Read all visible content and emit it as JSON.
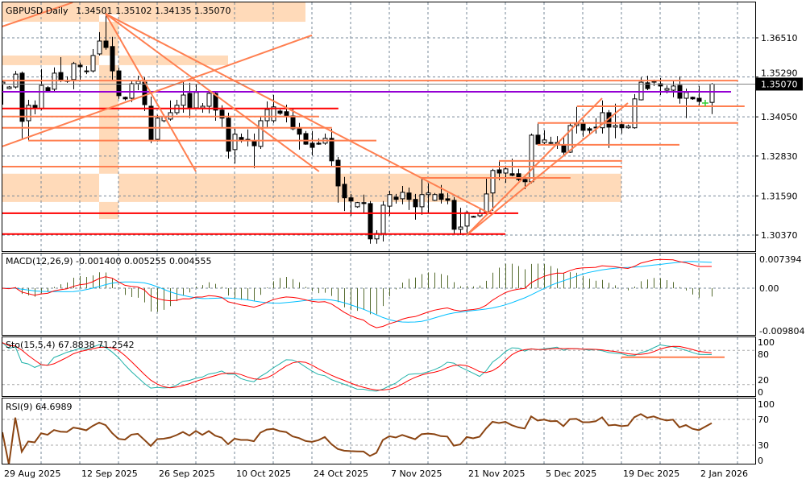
{
  "header": {
    "symbol": "GBPUSD",
    "timeframe": "Daily",
    "open": "1.34501",
    "high": "1.35102",
    "low": "1.34135",
    "close": "1.35070"
  },
  "price_axis": {
    "labels": [
      "1.36510",
      "1.35290",
      "1.34050",
      "1.32830",
      "1.31590",
      "1.30370"
    ],
    "current": "1.35070"
  },
  "colors": {
    "bull": "#FFFFFF",
    "bear": "#000000",
    "grid": "#778899",
    "orange": "#FF7F50",
    "red": "#FF0000",
    "purple": "#9400D3",
    "zone": "#FFDAB9",
    "bid": "#808080",
    "macd_main": "#FF0000",
    "macd_signal": "#00BFFF",
    "macd_hist": "#556B2F",
    "sto_main": "#20B2AA",
    "sto_signal": "#FF0000",
    "rsi": "#8B4513",
    "marker": "#32CD32"
  },
  "chart_data": {
    "type": "candlestick",
    "title": "GBPUSD Daily",
    "ylim": [
      1.3017,
      1.3764
    ],
    "x_labels": [
      {
        "bar": 0,
        "label": "29 Aug 2025"
      },
      {
        "bar": 12,
        "label": "12 Sep 2025"
      },
      {
        "bar": 24,
        "label": "26 Sep 2025"
      },
      {
        "bar": 36,
        "label": "10 Oct 2025"
      },
      {
        "bar": 48,
        "label": "24 Oct 2025"
      },
      {
        "bar": 60,
        "label": "7 Nov 2025"
      },
      {
        "bar": 72,
        "label": "21 Nov 2025"
      },
      {
        "bar": 84,
        "label": "5 Dec 2025"
      },
      {
        "bar": 96,
        "label": "19 Dec 2025"
      },
      {
        "bar": 108,
        "label": "2 Jan 2026"
      }
    ],
    "candles_ohlc": [
      [
        1.3508,
        1.3518,
        1.3443,
        1.3513
      ],
      [
        1.3493,
        1.3501,
        1.3491,
        1.3498
      ],
      [
        1.3498,
        1.3548,
        1.3493,
        1.3538
      ],
      [
        1.3541,
        1.3546,
        1.3338,
        1.3391
      ],
      [
        1.3393,
        1.3458,
        1.3331,
        1.3441
      ],
      [
        1.3441,
        1.3456,
        1.3413,
        1.3431
      ],
      [
        1.3431,
        1.3554,
        1.3426,
        1.3503
      ],
      [
        1.3496,
        1.3501,
        1.3483,
        1.3486
      ],
      [
        1.3491,
        1.3559,
        1.3481,
        1.3541
      ],
      [
        1.3543,
        1.3591,
        1.3513,
        1.3521
      ],
      [
        1.3518,
        1.3531,
        1.3511,
        1.3518
      ],
      [
        1.3521,
        1.3576,
        1.3491,
        1.3571
      ],
      [
        1.3566,
        1.3574,
        1.3521,
        1.3561
      ],
      [
        1.3548,
        1.3563,
        1.3538,
        1.3546
      ],
      [
        1.3548,
        1.3616,
        1.3543,
        1.3596
      ],
      [
        1.3601,
        1.3669,
        1.3596,
        1.3641
      ],
      [
        1.3641,
        1.3729,
        1.3614,
        1.3621
      ],
      [
        1.3624,
        1.3654,
        1.3521,
        1.3548
      ],
      [
        1.3548,
        1.3558,
        1.3461,
        1.3471
      ],
      [
        1.3466,
        1.3468,
        1.3456,
        1.3461
      ],
      [
        1.3463,
        1.3516,
        1.3451,
        1.3508
      ],
      [
        1.3508,
        1.3533,
        1.3488,
        1.3516
      ],
      [
        1.3513,
        1.3528,
        1.3423,
        1.3443
      ],
      [
        1.3438,
        1.3468,
        1.3323,
        1.3333
      ],
      [
        1.3335,
        1.3411,
        1.3328,
        1.3401
      ],
      [
        1.3393,
        1.3413,
        1.3388,
        1.3406
      ],
      [
        1.3398,
        1.3456,
        1.3393,
        1.3418
      ],
      [
        1.3418,
        1.3458,
        1.3411,
        1.3441
      ],
      [
        1.3441,
        1.3518,
        1.3418,
        1.3473
      ],
      [
        1.3478,
        1.3511,
        1.3401,
        1.3433
      ],
      [
        1.3433,
        1.3508,
        1.3431,
        1.3481
      ],
      [
        1.3433,
        1.3448,
        1.3418,
        1.3438
      ],
      [
        1.3438,
        1.3488,
        1.3416,
        1.3478
      ],
      [
        1.3478,
        1.3481,
        1.3393,
        1.3426
      ],
      [
        1.3426,
        1.3441,
        1.3373,
        1.3401
      ],
      [
        1.3401,
        1.3418,
        1.3275,
        1.3298
      ],
      [
        1.3303,
        1.3368,
        1.326,
        1.3351
      ],
      [
        1.3341,
        1.3353,
        1.3325,
        1.3333
      ],
      [
        1.3335,
        1.3366,
        1.3313,
        1.3333
      ],
      [
        1.3328,
        1.3353,
        1.3245,
        1.3315
      ],
      [
        1.3313,
        1.3406,
        1.3305,
        1.3393
      ],
      [
        1.3393,
        1.3453,
        1.3373,
        1.3428
      ],
      [
        1.3393,
        1.3473,
        1.3386,
        1.3436
      ],
      [
        1.3423,
        1.3428,
        1.3411,
        1.3416
      ],
      [
        1.3421,
        1.3443,
        1.3388,
        1.3408
      ],
      [
        1.3408,
        1.3431,
        1.3363,
        1.3368
      ],
      [
        1.3368,
        1.3386,
        1.3303,
        1.3351
      ],
      [
        1.3353,
        1.3361,
        1.3318,
        1.332
      ],
      [
        1.3323,
        1.3361,
        1.3285,
        1.331
      ],
      [
        1.3323,
        1.3338,
        1.3318,
        1.332
      ],
      [
        1.3323,
        1.3353,
        1.3318,
        1.3338
      ],
      [
        1.3338,
        1.3368,
        1.3248,
        1.3268
      ],
      [
        1.327,
        1.328,
        1.3138,
        1.319
      ],
      [
        1.3195,
        1.3218,
        1.3112,
        1.3153
      ],
      [
        1.3153,
        1.3165,
        1.3097,
        1.3143
      ],
      [
        1.3125,
        1.314,
        1.3122,
        1.3138
      ],
      [
        1.3138,
        1.3163,
        1.3105,
        1.3135
      ],
      [
        1.3135,
        1.3143,
        1.301,
        1.3025
      ],
      [
        1.3025,
        1.3052,
        1.301,
        1.3042
      ],
      [
        1.3042,
        1.3143,
        1.3017,
        1.313
      ],
      [
        1.3127,
        1.3175,
        1.3097,
        1.3163
      ],
      [
        1.3155,
        1.3165,
        1.3135,
        1.3148
      ],
      [
        1.315,
        1.319,
        1.3133,
        1.317
      ],
      [
        1.3168,
        1.3185,
        1.3115,
        1.3148
      ],
      [
        1.3148,
        1.3165,
        1.3085,
        1.3125
      ],
      [
        1.3125,
        1.3215,
        1.31,
        1.3163
      ],
      [
        1.3163,
        1.3198,
        1.3105,
        1.3168
      ],
      [
        1.3145,
        1.3168,
        1.3143,
        1.3163
      ],
      [
        1.3165,
        1.3193,
        1.3135,
        1.3148
      ],
      [
        1.315,
        1.3168,
        1.3133,
        1.3145
      ],
      [
        1.3145,
        1.3155,
        1.304,
        1.3055
      ],
      [
        1.3055,
        1.3122,
        1.3037,
        1.3062
      ],
      [
        1.3065,
        1.3112,
        1.304,
        1.3107
      ],
      [
        1.3095,
        1.3097,
        1.3092,
        1.3095
      ],
      [
        1.3097,
        1.3117,
        1.3092,
        1.3105
      ],
      [
        1.3107,
        1.3213,
        1.3097,
        1.3165
      ],
      [
        1.3168,
        1.3243,
        1.3112,
        1.3238
      ],
      [
        1.324,
        1.3268,
        1.3208,
        1.323
      ],
      [
        1.323,
        1.3253,
        1.32,
        1.3243
      ],
      [
        1.3228,
        1.3275,
        1.322,
        1.3223
      ],
      [
        1.3228,
        1.3243,
        1.3205,
        1.321
      ],
      [
        1.321,
        1.3223,
        1.318,
        1.3203
      ],
      [
        1.3203,
        1.3353,
        1.3198,
        1.3348
      ],
      [
        1.3348,
        1.3386,
        1.3318,
        1.332
      ],
      [
        1.3325,
        1.3363,
        1.332,
        1.3333
      ],
      [
        1.3325,
        1.3343,
        1.3318,
        1.3323
      ],
      [
        1.3325,
        1.3345,
        1.3305,
        1.3325
      ],
      [
        1.3315,
        1.3343,
        1.3285,
        1.3295
      ],
      [
        1.3295,
        1.3386,
        1.3293,
        1.3378
      ],
      [
        1.3378,
        1.3436,
        1.3353,
        1.3383
      ],
      [
        1.3383,
        1.3396,
        1.3343,
        1.3363
      ],
      [
        1.3368,
        1.3373,
        1.335,
        1.3363
      ],
      [
        1.3373,
        1.3401,
        1.3353,
        1.3373
      ],
      [
        1.3371,
        1.3456,
        1.3353,
        1.3418
      ],
      [
        1.3418,
        1.3426,
        1.3308,
        1.3373
      ],
      [
        1.3373,
        1.3446,
        1.3338,
        1.3378
      ],
      [
        1.3381,
        1.3393,
        1.3353,
        1.3371
      ],
      [
        1.3371,
        1.3381,
        1.3368,
        1.3376
      ],
      [
        1.3371,
        1.3476,
        1.3368,
        1.3461
      ],
      [
        1.3458,
        1.3528,
        1.3456,
        1.3513
      ],
      [
        1.3511,
        1.3533,
        1.3488,
        1.3493
      ],
      [
        1.3518,
        1.3521,
        1.3501,
        1.3513
      ],
      [
        1.3508,
        1.3526,
        1.3473,
        1.3501
      ],
      [
        1.3488,
        1.3503,
        1.3478,
        1.3493
      ],
      [
        1.3488,
        1.3518,
        1.3466,
        1.3501
      ],
      [
        1.3503,
        1.3531,
        1.3446,
        1.3463
      ],
      [
        1.3463,
        1.3493,
        1.3401,
        1.3481
      ],
      [
        1.3466,
        1.3468,
        1.3458,
        1.3461
      ],
      [
        1.3463,
        1.3501,
        1.3441,
        1.3453
      ],
      null,
      [
        1.34501,
        1.35102,
        1.34135,
        1.3507
      ]
    ],
    "zones": [
      {
        "bar_from": -0.1,
        "bar_to": 47,
        "price_top": 1.3764,
        "price_bottom": 1.3701
      },
      {
        "bar_from": -0.1,
        "bar_to": 35,
        "price_top": 1.3596,
        "price_bottom": 1.3566
      },
      {
        "bar_from": 15,
        "bar_to": 18,
        "price_top": 1.3724,
        "price_bottom": 1.3087
      },
      {
        "bar_from": -0.1,
        "bar_to": 96,
        "price_top": 1.3228,
        "price_bottom": 1.314
      }
    ],
    "hlines": [
      {
        "price": 1.3518,
        "bar_from": -0.1,
        "bar_to": 114.1,
        "color": "orange"
      },
      {
        "price": 1.3483,
        "bar_from": -0.1,
        "bar_to": 113,
        "color": "purple"
      },
      {
        "price": 1.3431,
        "bar_from": -0.1,
        "bar_to": 52.1,
        "color": "red"
      },
      {
        "price": 1.3406,
        "bar_from": -0.1,
        "bar_to": 49.1,
        "color": "orange"
      },
      {
        "price": 1.3371,
        "bar_from": -0.1,
        "bar_to": 51.1,
        "color": "orange"
      },
      {
        "price": 1.3331,
        "bar_from": 4,
        "bar_to": 58,
        "color": "orange"
      },
      {
        "price": 1.325,
        "bar_from": -0.1,
        "bar_to": 96.1,
        "color": "orange"
      },
      {
        "price": 1.3105,
        "bar_from": -0.1,
        "bar_to": 80,
        "color": "red"
      },
      {
        "price": 1.304,
        "bar_from": -0.1,
        "bar_to": 78,
        "color": "red"
      },
      {
        "price": 1.3215,
        "bar_from": 65,
        "bar_to": 88.1,
        "color": "orange"
      },
      {
        "price": 1.3268,
        "bar_from": 77,
        "bar_to": 96.1,
        "color": "orange"
      },
      {
        "price": 1.3386,
        "bar_from": 83,
        "bar_to": 114.1,
        "color": "orange"
      },
      {
        "price": 1.3318,
        "bar_from": 83,
        "bar_to": 105,
        "color": "orange"
      },
      {
        "price": 1.3438,
        "bar_from": 89.1,
        "bar_to": 115.1,
        "color": "orange"
      }
    ],
    "trendlines": [
      {
        "bar1": -0.1,
        "price1": 1.3686,
        "bar2": 10.9,
        "price2": 1.3761
      },
      {
        "bar1": 0,
        "price1": 1.3313,
        "bar2": 48,
        "price2": 1.3659
      },
      {
        "bar1": 16,
        "price1": 1.3726,
        "bar2": 30,
        "price2": 1.3235
      },
      {
        "bar1": 16,
        "price1": 1.3726,
        "bar2": 49.1,
        "price2": 1.3235
      },
      {
        "bar1": 16,
        "price1": 1.3726,
        "bar2": 75.5,
        "price2": 1.3105
      },
      {
        "bar1": 72,
        "price1": 1.3037,
        "bar2": 93,
        "price2": 1.3463
      },
      {
        "bar1": 72,
        "price1": 1.3037,
        "bar2": 97,
        "price2": 1.3448
      }
    ],
    "marker": {
      "bar": 109,
      "price": 1.3448
    },
    "indicators": {
      "macd": {
        "label": "MACD(12,26,9)",
        "values": [
          "-0.001400",
          "0.005255",
          "0.004555"
        ],
        "fast": 12,
        "slow": 26,
        "signal": 9,
        "axis_labels": [
          "0.007394",
          "0.00",
          "-0.009804"
        ]
      },
      "stochastic": {
        "label": "Sto(15,5,4)",
        "values": [
          "67.8838",
          "71.2542"
        ],
        "k": 15,
        "slowing": 5,
        "d": 4,
        "axis_labels": [
          "100",
          "80",
          "20",
          "0"
        ],
        "levels": [
          80,
          20
        ],
        "hline": {
          "value": 68,
          "bar_from": 96,
          "bar_to": 112
        }
      },
      "rsi": {
        "label": "RSI(9)",
        "value": "64.6989",
        "period": 9,
        "axis_labels": [
          "100",
          "70",
          "30",
          "0"
        ],
        "levels": [
          70,
          30
        ]
      }
    }
  }
}
